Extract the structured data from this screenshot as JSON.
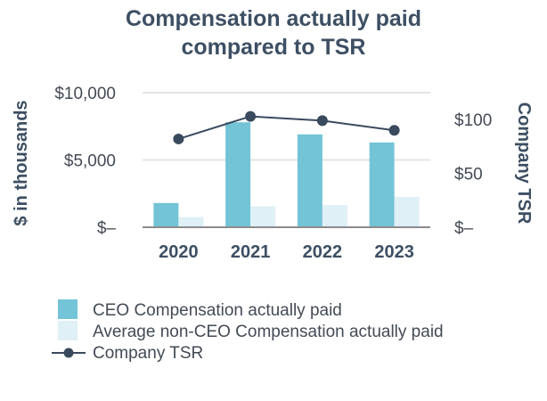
{
  "chart_data": {
    "type": "bar",
    "title_lines": [
      "Compensation actually paid",
      "compared to TSR"
    ],
    "categories": [
      "2020",
      "2021",
      "2022",
      "2023"
    ],
    "series": [
      {
        "name": "CEO Compensation actually paid",
        "kind": "bar",
        "axis": "left",
        "values": [
          1800,
          7800,
          6900,
          6300
        ]
      },
      {
        "name": "Average non-CEO Compensation actually paid",
        "kind": "bar",
        "axis": "left",
        "values": [
          750,
          1550,
          1650,
          2250
        ]
      },
      {
        "name": "Company TSR",
        "kind": "line",
        "axis": "right",
        "values": [
          82,
          103,
          99,
          90
        ]
      }
    ],
    "y_left": {
      "label": "$ in thousands",
      "ticks": [
        0,
        5000,
        10000
      ],
      "tick_labels": [
        "$–",
        "$5,000",
        "$10,000"
      ],
      "range": [
        0,
        10000
      ]
    },
    "y_right": {
      "label": "Company TSR",
      "ticks": [
        0,
        50,
        100
      ],
      "tick_labels": [
        "$–",
        "$50",
        "$100"
      ],
      "range": [
        0,
        125
      ]
    },
    "grid": true,
    "legend_position": "bottom",
    "colors": {
      "title": "#3d4f63",
      "text": "#444a55",
      "ceo_bar": "#72c4d6",
      "non_ceo_bar": "#dff0f6",
      "tsr_line": "#3a4a5e",
      "grid": "#e4e4e4",
      "baseline": "#8c8c8c"
    }
  }
}
